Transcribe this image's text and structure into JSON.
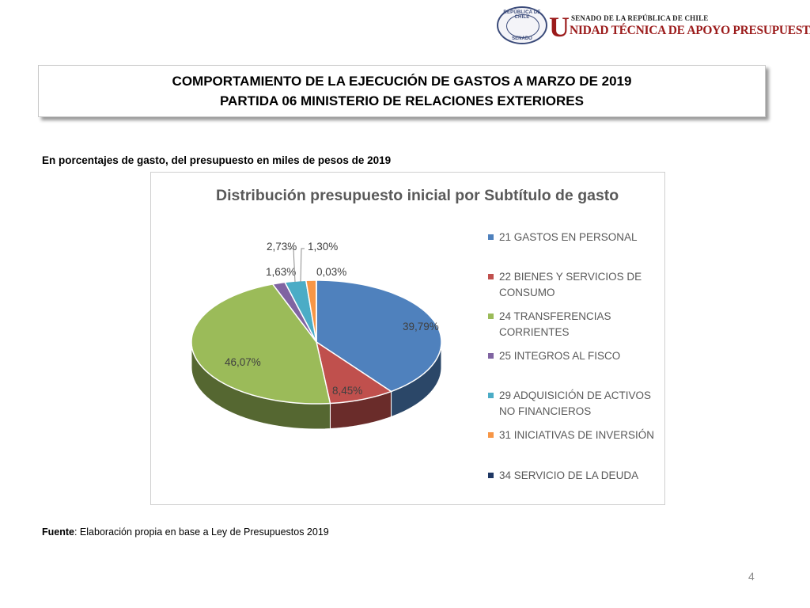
{
  "logo": {
    "seal_top": "REPÚBLICA DE CHILE",
    "seal_bottom": "SENADO",
    "big_letter": "U",
    "line1": "SENADO DE LA REPÚBLICA DE CHILE",
    "line2": "NIDAD TÉCNICA DE APOYO PRESUPUESTARIO"
  },
  "title": {
    "line1": "COMPORTAMIENTO DE LA EJECUCIÓN DE GASTOS A MARZO DE 2019",
    "line2": "PARTIDA 06 MINISTERIO DE RELACIONES EXTERIORES"
  },
  "subtitle": "En porcentajes de gasto, del presupuesto en miles de pesos de 2019",
  "chart_data": {
    "type": "pie",
    "title": "Distribución presupuesto inicial por Subtítulo de gasto",
    "legend_position": "right",
    "slices": [
      {
        "name": "21 GASTOS EN PERSONAL",
        "value": 39.79,
        "label": "39,79%",
        "color": "#4f81bd"
      },
      {
        "name": "22 BIENES Y SERVICIOS DE CONSUMO",
        "value": 8.45,
        "label": "8,45%",
        "color": "#c0504d"
      },
      {
        "name": "24 TRANSFERENCIAS CORRIENTES",
        "value": 46.07,
        "label": "46,07%",
        "color": "#9bbb59"
      },
      {
        "name": "25 INTEGROS AL FISCO",
        "value": 1.63,
        "label": "1,63%",
        "color": "#8064a2"
      },
      {
        "name": "29 ADQUISICIÓN DE ACTIVOS NO FINANCIEROS",
        "value": 2.73,
        "label": "2,73%",
        "color": "#4bacc6"
      },
      {
        "name": "31 INICIATIVAS DE INVERSIÓN",
        "value": 1.3,
        "label": "1,30%",
        "color": "#f79646"
      },
      {
        "name": "34 SERVICIO DE LA DEUDA",
        "value": 0.03,
        "label": "0,03%",
        "color": "#1f3864"
      }
    ]
  },
  "source": {
    "label": "Fuente",
    "text": ": Elaboración propia en base a Ley de Presupuestos 2019"
  },
  "page_number": "4"
}
